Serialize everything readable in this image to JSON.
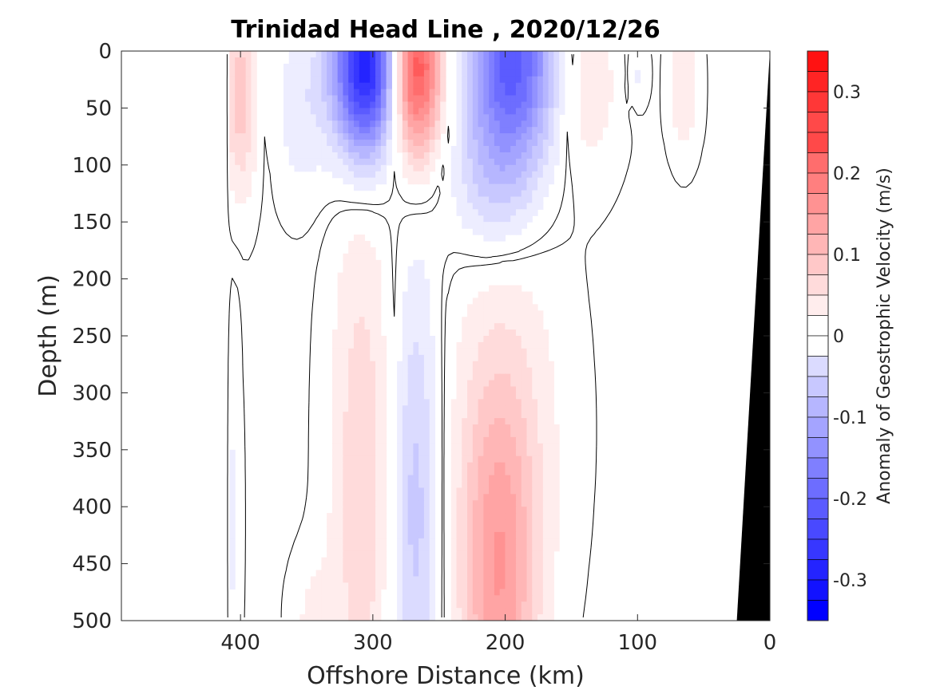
{
  "chart_data": {
    "type": "heatmap",
    "title": "Trinidad Head Line , 2020/12/26",
    "xlabel": "Offshore Distance (km)",
    "ylabel": "Depth (m)",
    "colorbar_label": "Anomaly of Geostrophic Velocity (m/s)",
    "xlim": [
      490,
      0
    ],
    "ylim": [
      500,
      0
    ],
    "x_reversed": true,
    "y_reversed": true,
    "x_ticks": [
      {
        "value": 400,
        "label": "400"
      },
      {
        "value": 300,
        "label": "300"
      },
      {
        "value": 200,
        "label": "200"
      },
      {
        "value": 100,
        "label": "100"
      },
      {
        "value": 0,
        "label": "0"
      }
    ],
    "y_ticks": [
      {
        "value": 0,
        "label": "0"
      },
      {
        "value": 50,
        "label": "50"
      },
      {
        "value": 100,
        "label": "100"
      },
      {
        "value": 150,
        "label": "150"
      },
      {
        "value": 200,
        "label": "200"
      },
      {
        "value": 250,
        "label": "250"
      },
      {
        "value": 300,
        "label": "300"
      },
      {
        "value": 350,
        "label": "350"
      },
      {
        "value": 400,
        "label": "400"
      },
      {
        "value": 450,
        "label": "450"
      },
      {
        "value": 500,
        "label": "500"
      }
    ],
    "colorbar": {
      "vmin": -0.35,
      "vmax": 0.35,
      "step": 0.025,
      "ticks": [
        {
          "value": 0.3,
          "label": "0.3"
        },
        {
          "value": 0.2,
          "label": "0.2"
        },
        {
          "value": 0.1,
          "label": "0.1"
        },
        {
          "value": 0,
          "label": "0"
        },
        {
          "value": -0.1,
          "label": "-0.1"
        },
        {
          "value": -0.2,
          "label": "-0.2"
        },
        {
          "value": -0.3,
          "label": "-0.3"
        }
      ],
      "color_positive": "#ff0000",
      "color_negative": "#0000ff",
      "color_zero": "#ffffff"
    },
    "features": [
      {
        "name": "surface-positive-anomaly-400km",
        "x": 400,
        "depth": 40,
        "sx": 9,
        "sd": 60,
        "value": 0.09
      },
      {
        "name": "surface-negative-anomaly-355km",
        "x": 355,
        "depth": 50,
        "sx": 14,
        "sd": 55,
        "value": -0.04
      },
      {
        "name": "surface-negative-core-305km",
        "x": 305,
        "depth": 15,
        "sx": 18,
        "sd": 55,
        "value": -0.33
      },
      {
        "name": "surface-positive-core-268km",
        "x": 268,
        "depth": 15,
        "sx": 14,
        "sd": 55,
        "value": 0.27
      },
      {
        "name": "surface-negative-core-195km",
        "x": 195,
        "depth": 10,
        "sx": 24,
        "sd": 65,
        "value": -0.24
      },
      {
        "name": "surface-negative-tail-210km",
        "x": 210,
        "depth": 120,
        "sx": 22,
        "sd": 45,
        "value": -0.06
      },
      {
        "name": "surface-positive-anomaly-140km",
        "x": 140,
        "depth": 30,
        "sx": 18,
        "sd": 55,
        "value": 0.05
      },
      {
        "name": "surface-negative-anomaly-100km",
        "x": 100,
        "depth": 20,
        "sx": 6,
        "sd": 22,
        "value": -0.03
      },
      {
        "name": "surface-positive-anomaly-65km",
        "x": 65,
        "depth": 30,
        "sx": 8,
        "sd": 40,
        "value": 0.05
      },
      {
        "name": "deep-positive-anomaly-308km",
        "x": 308,
        "depth": 380,
        "sx": 17,
        "sd": 180,
        "value": 0.07
      },
      {
        "name": "deep-negative-anomaly-268km",
        "x": 268,
        "depth": 400,
        "sx": 13,
        "sd": 150,
        "value": -0.09
      },
      {
        "name": "deep-positive-core-205km",
        "x": 205,
        "depth": 470,
        "sx": 20,
        "sd": 120,
        "value": 0.13
      },
      {
        "name": "deep-positive-anomaly-200km",
        "x": 200,
        "depth": 330,
        "sx": 32,
        "sd": 130,
        "value": 0.04
      },
      {
        "name": "deep-positive-edge-345km",
        "x": 345,
        "depth": 500,
        "sx": 12,
        "sd": 40,
        "value": 0.03
      },
      {
        "name": "deep-negative-edge-405km",
        "x": 405,
        "depth": 410,
        "sx": 4,
        "sd": 120,
        "value": -0.03
      }
    ],
    "data_coverage_min_x": 410,
    "bathymetry": {
      "description_color": "#000000",
      "points": [
        [
          0,
          0
        ],
        [
          25,
          500
        ],
        [
          0,
          500
        ]
      ]
    }
  }
}
